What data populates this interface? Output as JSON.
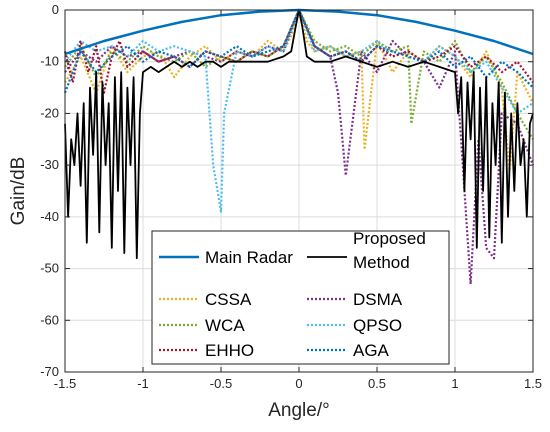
{
  "chart_data": {
    "type": "line",
    "xlabel": "Angle/°",
    "ylabel": "Gain/dB",
    "xlim": [
      -1.5,
      1.5
    ],
    "ylim": [
      -70,
      0
    ],
    "xticks": [
      -1.5,
      -1,
      -0.5,
      0,
      0.5,
      1,
      1.5
    ],
    "yticks": [
      0,
      -10,
      -20,
      -30,
      -40,
      -50,
      -60,
      -70
    ],
    "grid": true,
    "legend_position": "bottom-center",
    "series": [
      {
        "name": "Main Radar",
        "color": "#0072BD",
        "style": "solid",
        "x": [
          -1.5,
          -1.25,
          -1.0,
          -0.75,
          -0.5,
          -0.25,
          0,
          0.25,
          0.5,
          0.75,
          1.0,
          1.25,
          1.5
        ],
        "y": [
          -8.5,
          -6.0,
          -4.0,
          -2.3,
          -1.0,
          -0.3,
          0,
          -0.3,
          -1.0,
          -2.3,
          -4.0,
          -6.0,
          -8.5
        ]
      },
      {
        "name": "Proposed Method",
        "legend_lines": [
          "Proposed",
          "Method"
        ],
        "color": "#000000",
        "style": "solid",
        "x": [
          -1.5,
          -1.48,
          -1.46,
          -1.44,
          -1.42,
          -1.4,
          -1.38,
          -1.36,
          -1.34,
          -1.32,
          -1.3,
          -1.28,
          -1.26,
          -1.24,
          -1.22,
          -1.2,
          -1.18,
          -1.16,
          -1.14,
          -1.12,
          -1.1,
          -1.08,
          -1.06,
          -1.04,
          -1.02,
          -1.0,
          -0.95,
          -0.9,
          -0.85,
          -0.8,
          -0.75,
          -0.7,
          -0.65,
          -0.6,
          -0.55,
          -0.5,
          -0.45,
          -0.4,
          -0.3,
          -0.2,
          -0.1,
          -0.05,
          -0.02,
          0,
          0.02,
          0.05,
          0.1,
          0.2,
          0.3,
          0.4,
          0.5,
          0.6,
          0.7,
          0.8,
          0.9,
          1.0,
          1.02,
          1.04,
          1.06,
          1.08,
          1.1,
          1.12,
          1.14,
          1.16,
          1.18,
          1.2,
          1.22,
          1.24,
          1.26,
          1.28,
          1.3,
          1.32,
          1.34,
          1.36,
          1.38,
          1.4,
          1.42,
          1.44,
          1.46,
          1.48,
          1.5
        ],
        "y": [
          -22,
          -40,
          -25,
          -30,
          -20,
          -34,
          -18,
          -45,
          -15,
          -28,
          -12,
          -43,
          -14,
          -30,
          -18,
          -46,
          -13,
          -35,
          -12,
          -47,
          -15,
          -30,
          -13,
          -48,
          -20,
          -12,
          -11,
          -12,
          -11,
          -10,
          -11,
          -10,
          -11,
          -10,
          -10,
          -11,
          -10,
          -10,
          -10,
          -10,
          -9,
          -8,
          -3,
          0,
          -3,
          -9,
          -10,
          -10,
          -9,
          -10,
          -11,
          -10,
          -11,
          -10,
          -11,
          -12,
          -20,
          -13,
          -35,
          -14,
          -25,
          -12,
          -46,
          -15,
          -35,
          -13,
          -44,
          -18,
          -30,
          -14,
          -45,
          -16,
          -40,
          -20,
          -35,
          -18,
          -30,
          -25,
          -40,
          -22,
          -20
        ]
      },
      {
        "name": "CSSA",
        "color": "#EDB120",
        "style": "dotted",
        "x": [
          -1.5,
          -1.4,
          -1.3,
          -1.2,
          -1.1,
          -1.0,
          -0.9,
          -0.8,
          -0.7,
          -0.6,
          -0.5,
          -0.4,
          -0.3,
          -0.2,
          -0.1,
          -0.05,
          0,
          0.05,
          0.1,
          0.2,
          0.3,
          0.4,
          0.42,
          0.5,
          0.6,
          0.7,
          0.8,
          0.9,
          1.0,
          1.1,
          1.2,
          1.3,
          1.35,
          1.4,
          1.5
        ],
        "y": [
          -14,
          -9,
          -16,
          -7,
          -12,
          -9,
          -8,
          -13,
          -9,
          -7,
          -10,
          -8,
          -9,
          -6,
          -8,
          -5,
          0,
          -6,
          -8,
          -7,
          -9,
          -8,
          -27,
          -6,
          -12,
          -8,
          -10,
          -7,
          -9,
          -13,
          -8,
          -15,
          -31,
          -12,
          -18
        ]
      },
      {
        "name": "DSMA",
        "color": "#7E2F8E",
        "style": "dotted",
        "x": [
          -1.5,
          -1.4,
          -1.3,
          -1.2,
          -1.1,
          -1.0,
          -0.9,
          -0.8,
          -0.7,
          -0.6,
          -0.5,
          -0.4,
          -0.3,
          -0.2,
          -0.1,
          0,
          0.1,
          0.2,
          0.25,
          0.3,
          0.4,
          0.5,
          0.6,
          0.7,
          0.8,
          0.9,
          1.0,
          1.05,
          1.1,
          1.15,
          1.2,
          1.25,
          1.3,
          1.4,
          1.5
        ],
        "y": [
          -12,
          -8,
          -10,
          -7,
          -9,
          -8,
          -10,
          -9,
          -8,
          -9,
          -10,
          -8,
          -9,
          -7,
          -8,
          0,
          -7,
          -9,
          -16,
          -32,
          -8,
          -12,
          -6,
          -9,
          -10,
          -15,
          -8,
          -30,
          -53,
          -25,
          -46,
          -48,
          -20,
          -22,
          -30
        ]
      },
      {
        "name": "WCA",
        "color": "#77AC30",
        "style": "dotted",
        "x": [
          -1.5,
          -1.4,
          -1.3,
          -1.2,
          -1.1,
          -1.0,
          -0.9,
          -0.8,
          -0.7,
          -0.6,
          -0.5,
          -0.4,
          -0.3,
          -0.2,
          -0.1,
          0,
          0.1,
          0.2,
          0.3,
          0.4,
          0.5,
          0.6,
          0.7,
          0.72,
          0.8,
          0.9,
          1.0,
          1.1,
          1.2,
          1.3,
          1.4,
          1.5
        ],
        "y": [
          -11,
          -7,
          -13,
          -8,
          -10,
          -7,
          -9,
          -10,
          -8,
          -11,
          -9,
          -10,
          -8,
          -9,
          -7,
          0,
          -6,
          -8,
          -7,
          -9,
          -6,
          -8,
          -7,
          -22,
          -8,
          -10,
          -6,
          -12,
          -9,
          -14,
          -20,
          -25
        ]
      },
      {
        "name": "QPSO",
        "color": "#4DBEEE",
        "style": "dotted",
        "x": [
          -1.5,
          -1.4,
          -1.3,
          -1.2,
          -1.1,
          -1.0,
          -0.9,
          -0.8,
          -0.7,
          -0.6,
          -0.55,
          -0.5,
          -0.48,
          -0.4,
          -0.3,
          -0.2,
          -0.1,
          0,
          0.1,
          0.2,
          0.3,
          0.4,
          0.5,
          0.6,
          0.7,
          0.8,
          0.9,
          1.0,
          1.1,
          1.2,
          1.3,
          1.4,
          1.5
        ],
        "y": [
          -10,
          -6,
          -8,
          -7,
          -9,
          -6,
          -8,
          -7,
          -8,
          -9,
          -30,
          -39,
          -20,
          -8,
          -9,
          -7,
          -8,
          0,
          -8,
          -7,
          -9,
          -8,
          -6,
          -9,
          -8,
          -10,
          -7,
          -9,
          -12,
          -10,
          -15,
          -20,
          -18
        ]
      },
      {
        "name": "EHHO",
        "color": "#A2142F",
        "style": "dotted",
        "x": [
          -1.5,
          -1.45,
          -1.4,
          -1.35,
          -1.3,
          -1.25,
          -1.2,
          -1.15,
          -1.1,
          -1.0,
          -0.9,
          -0.8,
          -0.7,
          -0.6,
          -0.5,
          -0.4,
          -0.3,
          -0.2,
          -0.1,
          0,
          0.1,
          0.2,
          0.3,
          0.4,
          0.5,
          0.6,
          0.7,
          0.8,
          0.9,
          1.0,
          1.1,
          1.2,
          1.3,
          1.4,
          1.5
        ],
        "y": [
          -8,
          -14,
          -6,
          -12,
          -7,
          -16,
          -9,
          -6,
          -11,
          -8,
          -10,
          -9,
          -11,
          -8,
          -9,
          -10,
          -8,
          -9,
          -7,
          0,
          -7,
          -9,
          -8,
          -10,
          -7,
          -9,
          -8,
          -10,
          -9,
          -7,
          -11,
          -9,
          -12,
          -10,
          -14
        ]
      },
      {
        "name": "AGA",
        "color": "#0072BD",
        "style": "dotted",
        "x": [
          -1.5,
          -1.4,
          -1.3,
          -1.2,
          -1.1,
          -1.0,
          -0.9,
          -0.8,
          -0.7,
          -0.6,
          -0.5,
          -0.4,
          -0.3,
          -0.2,
          -0.1,
          0,
          0.1,
          0.2,
          0.3,
          0.4,
          0.5,
          0.6,
          0.7,
          0.8,
          0.9,
          1.0,
          1.1,
          1.2,
          1.3,
          1.4,
          1.5
        ],
        "y": [
          -16,
          -8,
          -12,
          -9,
          -7,
          -10,
          -8,
          -9,
          -11,
          -8,
          -9,
          -7,
          -9,
          -8,
          -7,
          0,
          -7,
          -9,
          -8,
          -10,
          -7,
          -8,
          -9,
          -10,
          -8,
          -11,
          -9,
          -13,
          -10,
          -12,
          -15
        ]
      }
    ],
    "legend_layout": [
      [
        "Main Radar",
        "Proposed Method"
      ],
      [
        "CSSA",
        "DSMA"
      ],
      [
        "WCA",
        "QPSO"
      ],
      [
        "EHHO",
        "AGA"
      ]
    ]
  }
}
